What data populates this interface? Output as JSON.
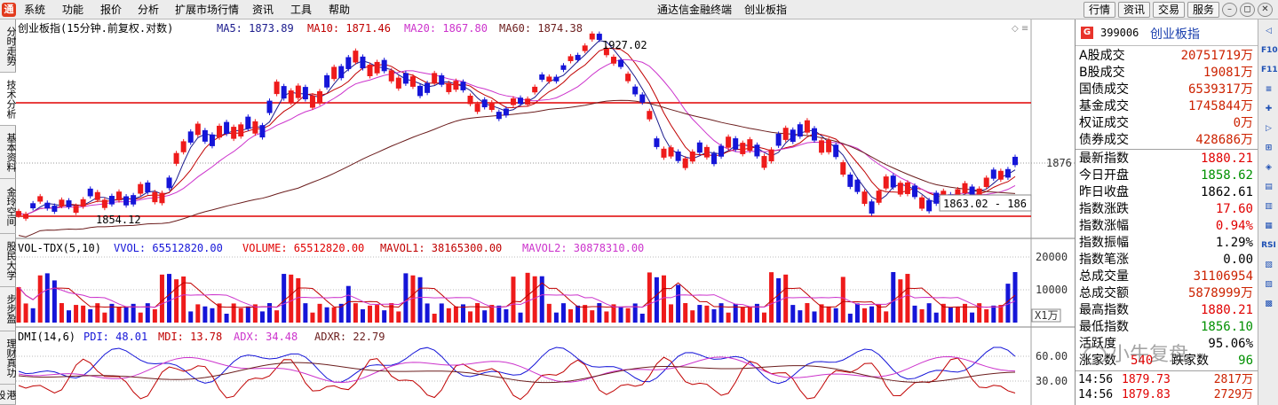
{
  "menubar": {
    "items": [
      "系统",
      "功能",
      "报价",
      "分析",
      "扩展市场行情",
      "资讯",
      "工具",
      "帮助"
    ],
    "title": "通达信金融终端",
    "subtitle": "创业板指",
    "buttons": [
      "行情",
      "资讯",
      "交易",
      "服务"
    ]
  },
  "left_tabs": [
    "分时走势",
    "技术分析",
    "基本资料",
    "金玲空间",
    "股民大学",
    "步步盈",
    "理财真功",
    "港股"
  ],
  "price_chart": {
    "title": "创业板指(15分钟.前复权.对数)",
    "ma5_label": "MA5: 1873.89",
    "ma10_label": "MA10: 1871.46",
    "ma20_label": "MA20: 1867.80",
    "ma60_label": "MA60: 1874.38",
    "high_annotation": "1927.02",
    "low_annotation": "1854.12",
    "range_annotation": "1863.02 - 186",
    "axis_label": "1876"
  },
  "volume_chart": {
    "title": "VOL-TDX(5,10)",
    "vvol_label": "VVOL: 65512820.00",
    "volume_label": "VOLUME: 65512820.00",
    "mavol1_label": "MAVOL1: 38165300.00",
    "mavol2_label": "MAVOL2: 30878310.00",
    "axis_20000": "20000",
    "axis_10000": "10000",
    "unit": "X1万"
  },
  "dmi_chart": {
    "title": "DMI(14,6)",
    "pdi_label": "PDI: 48.01",
    "mdi_label": "MDI: 13.78",
    "adx_label": "ADX: 34.48",
    "adxr_label": "ADXR: 22.79",
    "axis_60": "60.00",
    "axis_30": "30.00"
  },
  "right_panel": {
    "g_badge": "G",
    "code": "399006",
    "name": "创业板指",
    "rows": [
      {
        "label": "A股成交",
        "value": "20751719万",
        "color": "#cc2200"
      },
      {
        "label": "B股成交",
        "value": "19081万",
        "color": "#cc2200"
      },
      {
        "label": "国债成交",
        "value": "6539317万",
        "color": "#cc2200"
      },
      {
        "label": "基金成交",
        "value": "1745844万",
        "color": "#cc2200"
      },
      {
        "label": "权证成交",
        "value": "0万",
        "color": "#cc2200"
      },
      {
        "label": "债券成交",
        "value": "428686万",
        "color": "#cc2200"
      },
      {
        "label": "最新指数",
        "value": "1880.21",
        "color": "#e00000"
      },
      {
        "label": "今日开盘",
        "value": "1858.62",
        "color": "#009000"
      },
      {
        "label": "昨日收盘",
        "value": "1862.61",
        "color": "#000000"
      },
      {
        "label": "指数涨跌",
        "value": "17.60",
        "color": "#e00000"
      },
      {
        "label": "指数涨幅",
        "value": "0.94%",
        "color": "#e00000"
      },
      {
        "label": "指数振幅",
        "value": "1.29%",
        "color": "#000000"
      },
      {
        "label": "指数笔涨",
        "value": "0.00",
        "color": "#000000"
      },
      {
        "label": "总成交量",
        "value": "31106954",
        "color": "#cc2200"
      },
      {
        "label": "总成交额",
        "value": "5878999万",
        "color": "#cc2200"
      },
      {
        "label": "最高指数",
        "value": "1880.21",
        "color": "#e00000"
      },
      {
        "label": "最低指数",
        "value": "1856.10",
        "color": "#009000"
      },
      {
        "label": "活跃度",
        "value": "95.06%",
        "color": "#000000"
      },
      {
        "label": "涨家数",
        "value": "540",
        "color": "#e00000",
        "extra_label": "跌家数",
        "extra_value": "96",
        "extra_color": "#009000"
      }
    ],
    "ticks": [
      {
        "time": "14:56",
        "price": "1879.73",
        "vol": "2817万"
      },
      {
        "time": "14:56",
        "price": "1879.83",
        "vol": "2729万"
      }
    ]
  },
  "right_toolbar": [
    "◁",
    "F10",
    "F11",
    "≡",
    "✚",
    "▷",
    "⊞",
    "◈",
    "▤",
    "▥",
    "▦",
    "RSI",
    "▧",
    "▨",
    "▩"
  ],
  "watermark": "小牛复盘",
  "colors": {
    "up": "#ee1b1b",
    "down": "#1515d8",
    "ma5": "#1a1a8c",
    "ma10": "#c00000",
    "ma20": "#cc33cc",
    "ma60": "#6b1d1d",
    "hline": "#e00000"
  }
}
